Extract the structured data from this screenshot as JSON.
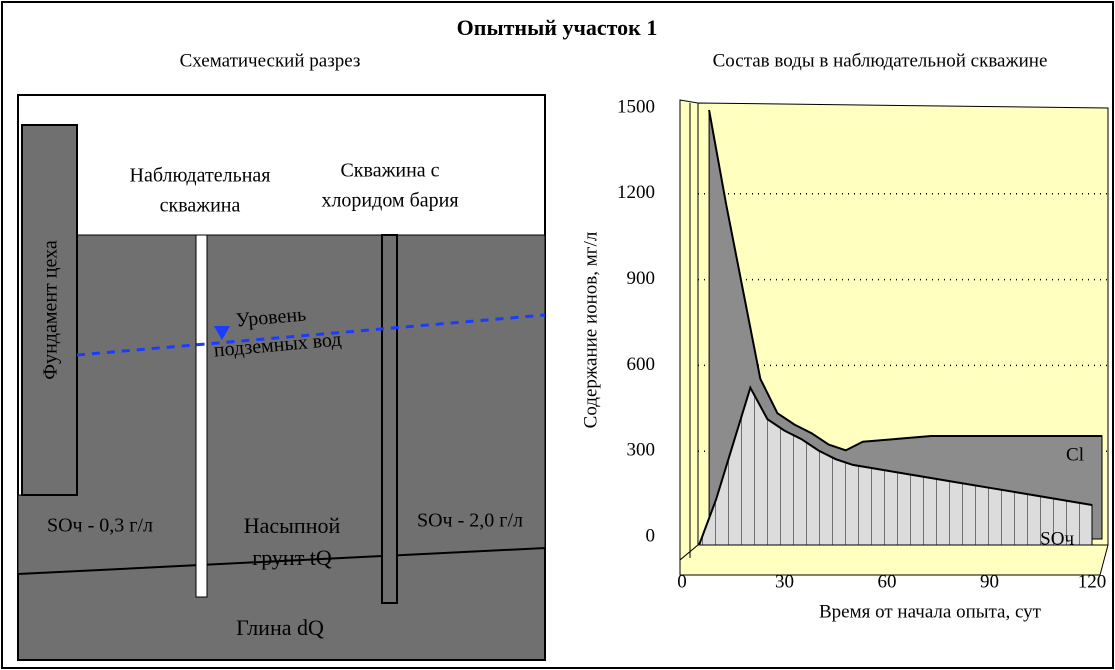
{
  "header": {
    "title": "Опытный участок 1"
  },
  "section": {
    "title": "Схематический разрез",
    "labels": {
      "foundation": "Фундамент цеха",
      "obs_well": [
        "Наблюдательная",
        "скважина"
      ],
      "ba_well": [
        "Скважина с",
        "хлоридом бария"
      ],
      "water_level": [
        "Уровень",
        "подземных вод"
      ],
      "so_left": "SOч - 0,3 г/л",
      "fill_soil": [
        "Насыпной",
        "грунт tQ"
      ],
      "so_right": "SOч - 2,0 г/л",
      "clay": "Глина dQ"
    }
  },
  "chart_data": {
    "type": "area3d",
    "title": "Состав воды в наблюдательной скважине",
    "x_label": "Время от начала опыта, сут",
    "y_label": "Содержание ионов, мг/л",
    "x": [
      5,
      10,
      20,
      25,
      30,
      35,
      40,
      45,
      50,
      60,
      70,
      80,
      90,
      100,
      110,
      120
    ],
    "series": [
      {
        "name": "Cl",
        "color": "#8c8c8c",
        "values": [
          1500,
          1170,
          560,
          440,
          400,
          370,
          330,
          310,
          340,
          350,
          360,
          360,
          360,
          360,
          360,
          360
        ]
      },
      {
        "name": "SOч",
        "color": "#dcdcdc",
        "values": [
          0,
          160,
          550,
          440,
          400,
          370,
          330,
          300,
          280,
          260,
          240,
          220,
          200,
          180,
          160,
          140
        ]
      }
    ],
    "xlim": [
      0,
      120
    ],
    "xticks": [
      0,
      30,
      60,
      90,
      120
    ],
    "ylim": [
      0,
      1500
    ],
    "yticks": [
      0,
      300,
      600,
      900,
      1200,
      1500
    ],
    "grid": true
  }
}
